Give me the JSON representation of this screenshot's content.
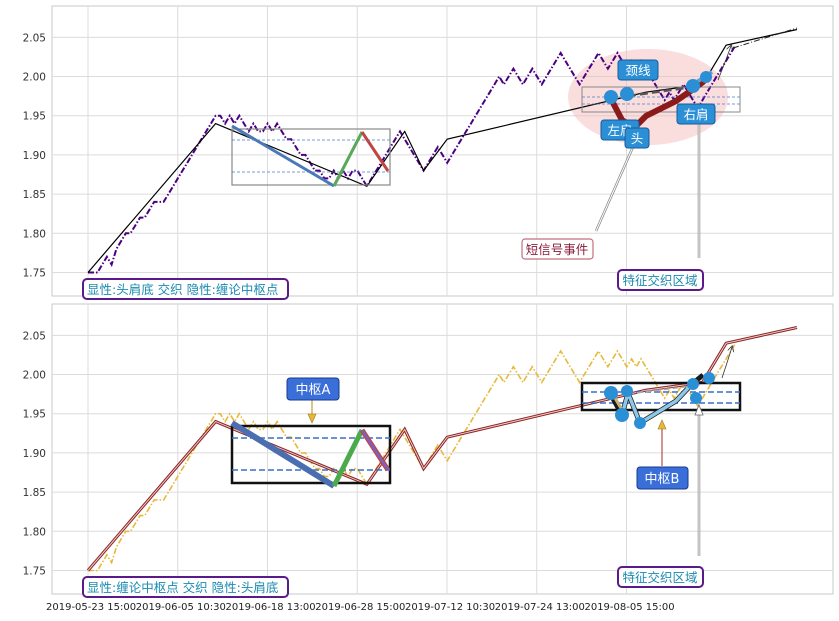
{
  "chart_data": [
    {
      "type": "line",
      "panel": "top",
      "ylim": [
        1.72,
        2.09
      ],
      "yticks": [
        "1.75",
        "1.80",
        "1.85",
        "1.90",
        "1.95",
        "2.00",
        "2.05"
      ],
      "grid": true,
      "series": [
        {
          "role": "price",
          "color": "#4b0082",
          "values": [
            1.75,
            1.75,
            1.75,
            1.76,
            1.77,
            1.76,
            1.78,
            1.79,
            1.8,
            1.8,
            1.81,
            1.82,
            1.82,
            1.83,
            1.84,
            1.84,
            1.84,
            1.85,
            1.86,
            1.87,
            1.88,
            1.89,
            1.9,
            1.91,
            1.92,
            1.93,
            1.94,
            1.95,
            1.95,
            1.94,
            1.95,
            1.94,
            1.95,
            1.94,
            1.93,
            1.94,
            1.93,
            1.93,
            1.94,
            1.93,
            1.94,
            1.93,
            1.92,
            1.92,
            1.91,
            1.9,
            1.9,
            1.89,
            1.88,
            1.88,
            1.87,
            1.87,
            1.88,
            1.87,
            1.88,
            1.87,
            1.88,
            1.88,
            1.87,
            1.86,
            1.87,
            1.88,
            1.89,
            1.9,
            1.91,
            1.92,
            1.93,
            1.92,
            1.91,
            1.9,
            1.89,
            1.88,
            1.89,
            1.9,
            1.91,
            1.9,
            1.89,
            1.9,
            1.91,
            1.92,
            1.93,
            1.94,
            1.95,
            1.96,
            1.97,
            1.98,
            1.99,
            2.0,
            1.99,
            2.0,
            2.01,
            2.0,
            1.99,
            2.0,
            2.01,
            2.0,
            1.99,
            2.0,
            2.01,
            2.02,
            2.03,
            2.02,
            2.01,
            2.0,
            1.99,
            2.0,
            2.01,
            2.02,
            2.03,
            2.02,
            2.01,
            2.02,
            2.03,
            2.02,
            2.01,
            2.02,
            2.01,
            2.02,
            2.01,
            2.0,
            1.99,
            1.98,
            1.97,
            1.98,
            1.97,
            1.98,
            1.99,
            1.98,
            1.97,
            1.96,
            1.97,
            1.98,
            1.99,
            2.0,
            2.01,
            2.02,
            2.03,
            2.04
          ]
        },
        {
          "role": "bi",
          "color": "#000000",
          "points": [
            [
              0,
              1.75
            ],
            [
              27,
              1.94
            ],
            [
              59,
              1.86
            ],
            [
              67,
              1.93
            ],
            [
              71,
              1.88
            ],
            [
              76,
              1.92
            ],
            [
              118,
              1.98
            ],
            [
              130,
              1.99
            ],
            [
              135,
              2.04
            ],
            [
              150,
              2.06
            ]
          ]
        }
      ],
      "annotations": [
        {
          "text": "显性:头肩底 交织 隐性:缠论中枢点"
        },
        {
          "text": "颈线"
        },
        {
          "text": "左肩"
        },
        {
          "text": "头"
        },
        {
          "text": "右肩"
        },
        {
          "text": "短信号事件"
        },
        {
          "text": "特征交织区域"
        }
      ]
    },
    {
      "type": "line",
      "panel": "bottom",
      "ylim": [
        1.72,
        2.09
      ],
      "yticks": [
        "1.75",
        "1.80",
        "1.85",
        "1.90",
        "1.95",
        "2.00",
        "2.05"
      ],
      "grid": true,
      "series": [
        {
          "role": "price",
          "color": "#e8b838"
        },
        {
          "role": "bi",
          "color": "#8b2323",
          "points": [
            [
              0,
              1.75
            ],
            [
              27,
              1.94
            ],
            [
              59,
              1.86
            ],
            [
              67,
              1.93
            ],
            [
              71,
              1.88
            ],
            [
              76,
              1.92
            ],
            [
              118,
              1.98
            ],
            [
              130,
              1.99
            ],
            [
              135,
              2.04
            ],
            [
              150,
              2.06
            ]
          ]
        }
      ],
      "xticks": [
        "2019-05-23 15:00",
        "2019-06-05 10:30",
        "2019-06-18 13:00",
        "2019-06-28 15:00",
        "2019-07-12 10:30",
        "2019-07-24 13:00",
        "2019-08-05 15:00"
      ],
      "annotations": [
        {
          "text": "显性:缠论中枢点 交织 隐性:头肩底"
        },
        {
          "text": "中枢A"
        },
        {
          "text": "中枢B"
        },
        {
          "text": "特征交织区域"
        }
      ]
    }
  ]
}
